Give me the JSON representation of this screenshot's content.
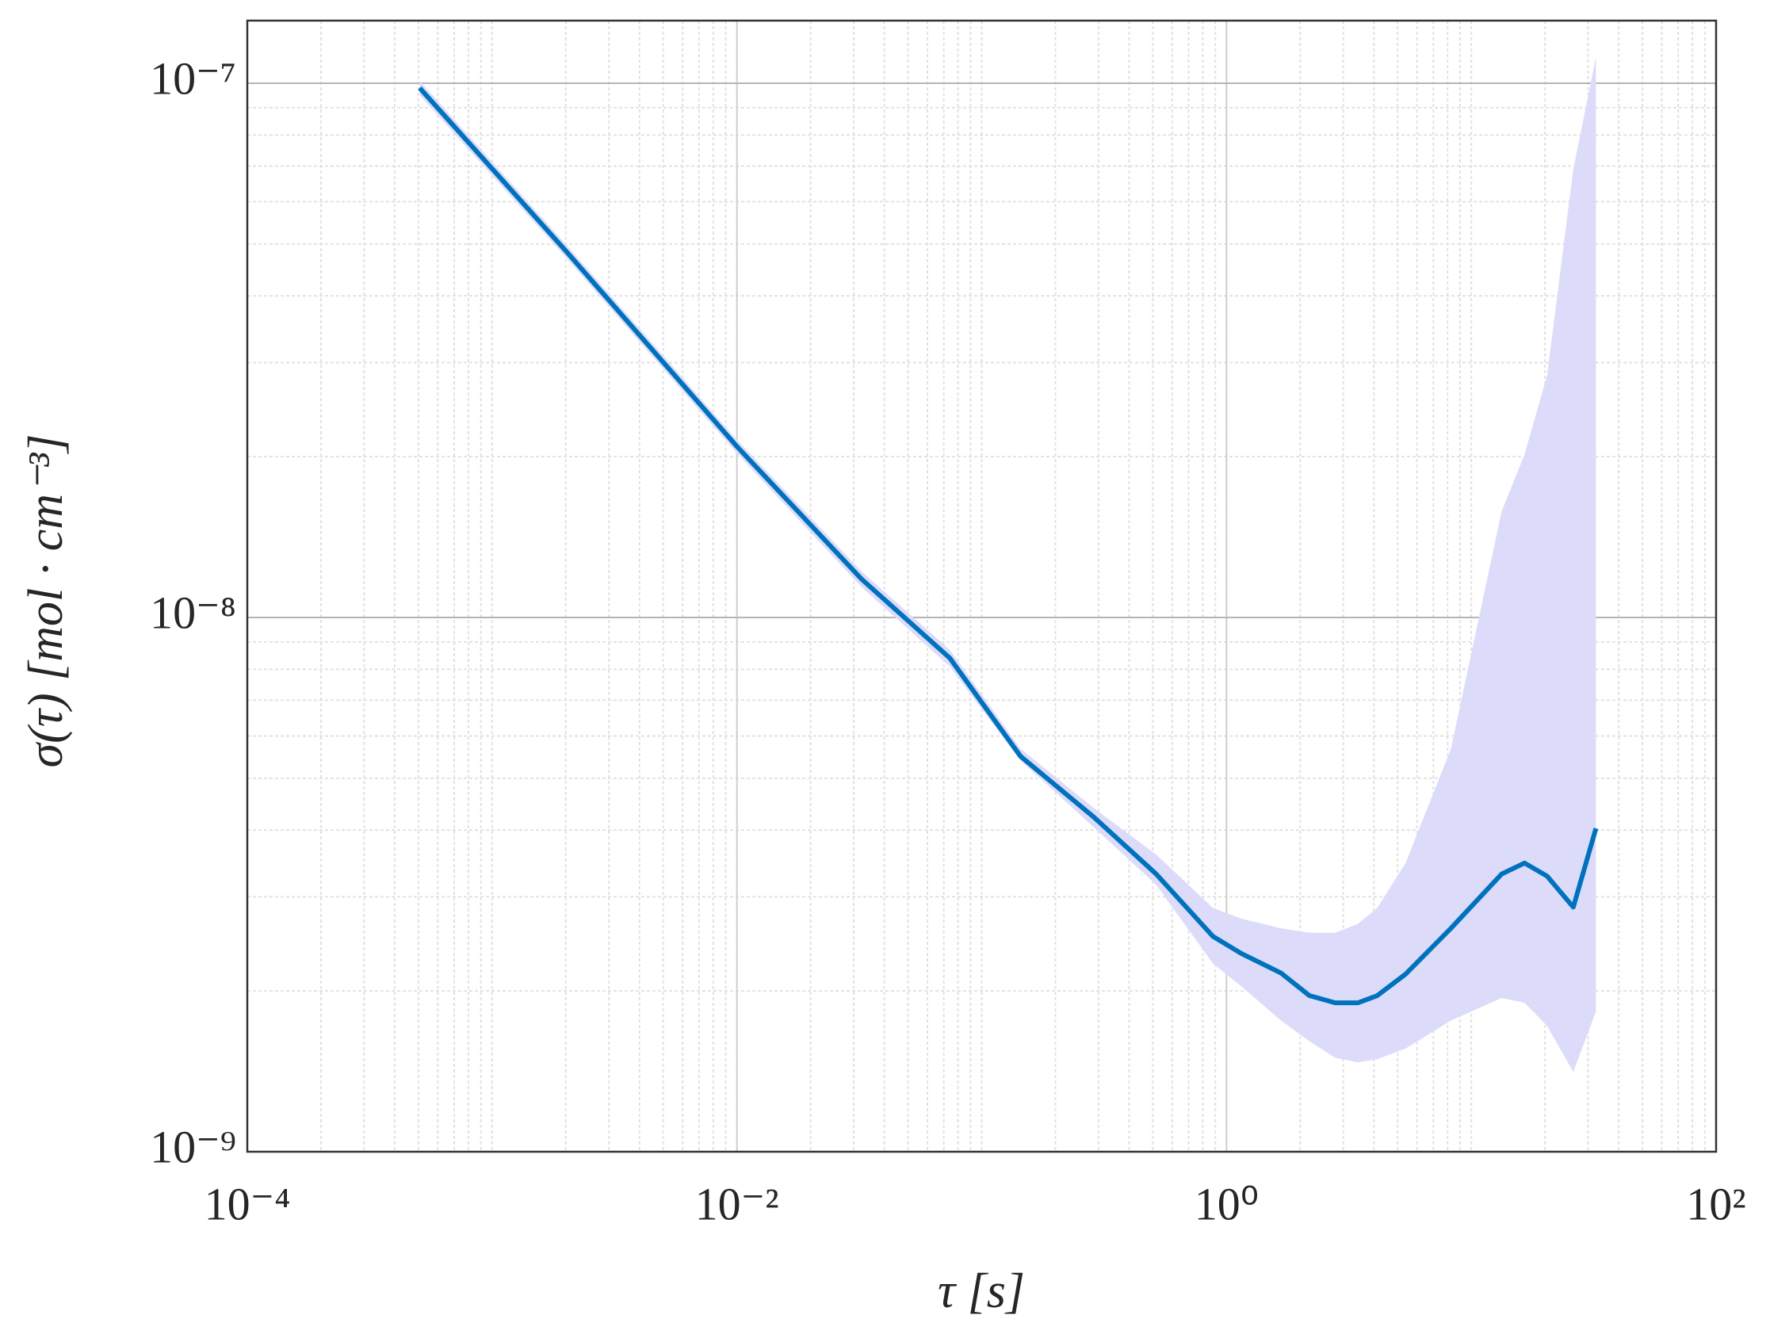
{
  "chart_data": {
    "type": "line",
    "xlabel": "τ [s]",
    "ylabel": "σ(τ) [mol · cm⁻³]",
    "x": [
      0.000506,
      0.00202,
      0.01,
      0.0323,
      0.074,
      0.144,
      0.287,
      0.516,
      0.88,
      1.15,
      1.67,
      2.18,
      2.78,
      3.44,
      4.13,
      5.39,
      8.26,
      13.3,
      16.5,
      20.4,
      26.1,
      32.3
    ],
    "values": [
      9.8e-08,
      4.83e-08,
      2.09e-08,
      1.18e-08,
      8.4e-09,
      5.5e-09,
      4.23e-09,
      3.31e-09,
      2.53e-09,
      2.35e-09,
      2.16e-09,
      1.96e-09,
      1.9e-09,
      1.9e-09,
      1.96e-09,
      2.15e-09,
      2.62e-09,
      3.31e-09,
      3.47e-09,
      3.28e-09,
      2.87e-09,
      4.03e-09
    ],
    "color": "#0072bd",
    "band": {
      "color": "#dcdcfa",
      "upper": [
        1.01e-07,
        4.97e-08,
        2.15e-08,
        1.22e-08,
        8.7e-09,
        5.68e-09,
        4.4e-09,
        3.6e-09,
        2.86e-09,
        2.73e-09,
        2.62e-09,
        2.57e-09,
        2.57e-09,
        2.67e-09,
        2.86e-09,
        3.47e-09,
        5.68e-09,
        1.58e-08,
        2.02e-08,
        2.84e-08,
        6.9e-08,
        1.12e-07
      ],
      "lower": [
        9.5e-08,
        4.7e-08,
        2.03e-08,
        1.14e-08,
        8.1e-09,
        5.4e-09,
        4.05e-09,
        3.16e-09,
        2.25e-09,
        2.04e-09,
        1.76e-09,
        1.61e-09,
        1.5e-09,
        1.47e-09,
        1.49e-09,
        1.56e-09,
        1.76e-09,
        1.94e-09,
        1.9e-09,
        1.72e-09,
        1.41e-09,
        1.83e-09
      ]
    },
    "xlog": true,
    "ylog": true,
    "xlim": [
      0.0001,
      100
    ],
    "ylim": [
      1e-09,
      1.31e-07
    ],
    "xticks": [
      {
        "value": 0.0001,
        "label": "10⁻⁴"
      },
      {
        "value": 0.01,
        "label": "10⁻²"
      },
      {
        "value": 1,
        "label": "10⁰"
      },
      {
        "value": 100,
        "label": "10²"
      }
    ],
    "yticks": [
      {
        "value": 1e-09,
        "label": "10⁻⁹"
      },
      {
        "value": 1e-08,
        "label": "10⁻⁸"
      },
      {
        "value": 1e-07,
        "label": "10⁻⁷"
      }
    ],
    "grid": true,
    "minor_grid": true
  }
}
